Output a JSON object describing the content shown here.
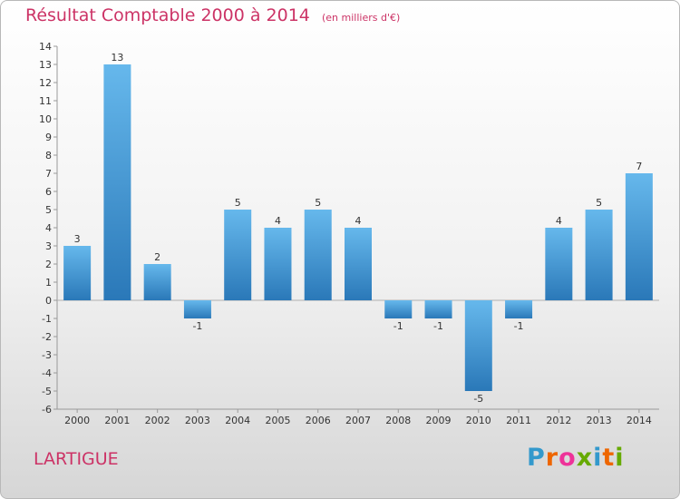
{
  "title": "Résultat Comptable 2000 à 2014",
  "unit": "(en milliers d'€)",
  "commune": "LARTIGUE",
  "logo": {
    "letters": [
      "P",
      "r",
      "o",
      "x",
      "i",
      "t",
      "i"
    ],
    "colors": [
      "#3399cc",
      "#ee6600",
      "#ee3399",
      "#66aa00",
      "#3399cc",
      "#ee6600",
      "#66aa00"
    ]
  },
  "colors": {
    "bar_light": "#66b8ec",
    "bar_dark": "#2a78b8",
    "accent": "#cc3366"
  },
  "chart_data": {
    "type": "bar",
    "categories": [
      "2000",
      "2001",
      "2002",
      "2003",
      "2004",
      "2005",
      "2006",
      "2007",
      "2008",
      "2009",
      "2010",
      "2011",
      "2012",
      "2013",
      "2014"
    ],
    "values": [
      3,
      13,
      2,
      -1,
      5,
      4,
      5,
      4,
      -1,
      -1,
      -5,
      -1,
      4,
      5,
      7
    ],
    "ylim": [
      -6,
      14
    ],
    "yticks": [
      14,
      13,
      12,
      11,
      10,
      9,
      8,
      7,
      6,
      5,
      4,
      3,
      2,
      1,
      0,
      -1,
      -2,
      -3,
      -4,
      -5,
      -6
    ],
    "xlabel": "",
    "ylabel": "",
    "grid": false
  }
}
